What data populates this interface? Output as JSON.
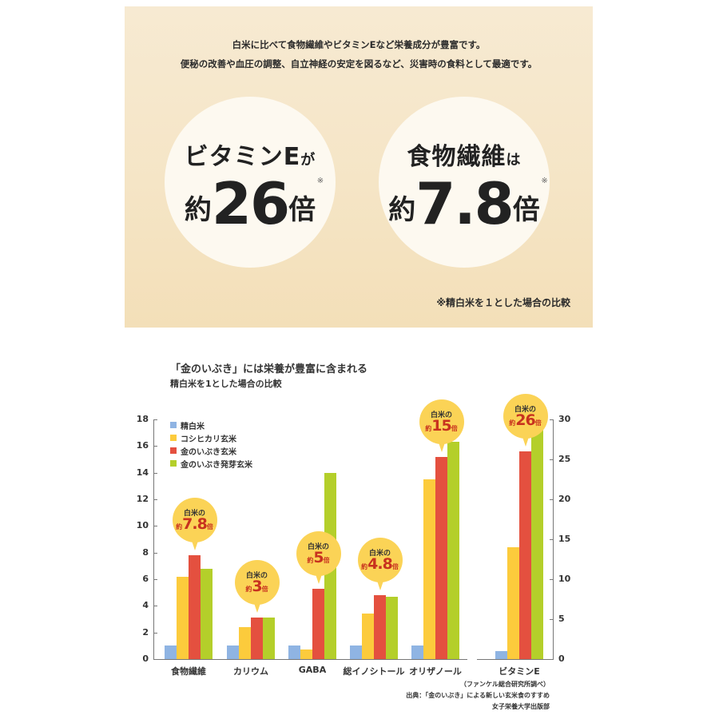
{
  "top_panel": {
    "intro_line1": "白米に比べて食物繊維やビタミンEなど栄養成分が豊富です。",
    "intro_line2": "便秘の改善や血圧の調整、自立神経の安定を図るなど、災害時の食料として最適です。",
    "circle1": {
      "line1_main": "ビタミンE",
      "line1_small": "が",
      "prefix": "約",
      "number": "26",
      "suffix": "倍",
      "mark": "※"
    },
    "circle2": {
      "line1_main": "食物繊維",
      "line1_small": "は",
      "prefix": "約",
      "number": "7.8",
      "suffix": "倍",
      "mark": "※"
    },
    "footnote": "※精白米を１とした場合の比較"
  },
  "chart_data": {
    "type": "bar",
    "title": "「金のいぶき」には栄養が豊富に含まれる",
    "subtitle": "精白米を1とした場合の比較",
    "xlabel": "",
    "ylabel": "",
    "ylim": [
      0,
      18
    ],
    "yticks": [
      "0",
      "2",
      "4",
      "6",
      "8",
      "10",
      "12",
      "14",
      "16",
      "18"
    ],
    "y2lim": [
      0,
      30
    ],
    "y2ticks": [
      "0",
      "5",
      "10",
      "15",
      "20",
      "25",
      "30"
    ],
    "y2_applies_to": [
      "ビタミンE"
    ],
    "categories": [
      "食物繊維",
      "カリウム",
      "GABA",
      "総イノシトール",
      "オリザノール",
      "ビタミンE"
    ],
    "series": [
      {
        "name": "精白米",
        "color": "#8fb4e3",
        "values": [
          1,
          1,
          1,
          1,
          1,
          1
        ]
      },
      {
        "name": "コシヒカリ玄米",
        "color": "#fccb3c",
        "values": [
          6.2,
          2.4,
          0.7,
          3.4,
          13.5,
          14
        ]
      },
      {
        "name": "金のいぶき玄米",
        "color": "#e4503f",
        "values": [
          7.8,
          3.1,
          5.3,
          4.8,
          15.2,
          26
        ]
      },
      {
        "name": "金のいぶき発芽玄米",
        "color": "#b4cf2a",
        "values": [
          6.8,
          3.1,
          14.0,
          4.7,
          16.3,
          30
        ]
      }
    ],
    "legend_position": "top-left",
    "grid": false,
    "annotations": [
      {
        "category": "食物繊維",
        "line1": "白米の",
        "prefix": "約",
        "value": "7.8",
        "suffix": "倍"
      },
      {
        "category": "カリウム",
        "line1": "白米の",
        "prefix": "約",
        "value": "3",
        "suffix": "倍"
      },
      {
        "category": "GABA",
        "line1": "白米の",
        "prefix": "約",
        "value": "5",
        "suffix": "倍"
      },
      {
        "category": "総イノシトール",
        "line1": "白米の",
        "prefix": "約",
        "value": "4.8",
        "suffix": "倍"
      },
      {
        "category": "オリザノール",
        "line1": "白米の",
        "prefix": "約",
        "value": "15",
        "suffix": "倍"
      },
      {
        "category": "ビタミンE",
        "line1": "白米の",
        "prefix": "約",
        "value": "26",
        "suffix": "倍"
      }
    ]
  },
  "source": {
    "line1": "（ファンケル総合研究所調べ）",
    "line2": "出典：「金のいぶき」による新しい玄米食のすすめ",
    "line3": "女子栄養大学出版部"
  }
}
